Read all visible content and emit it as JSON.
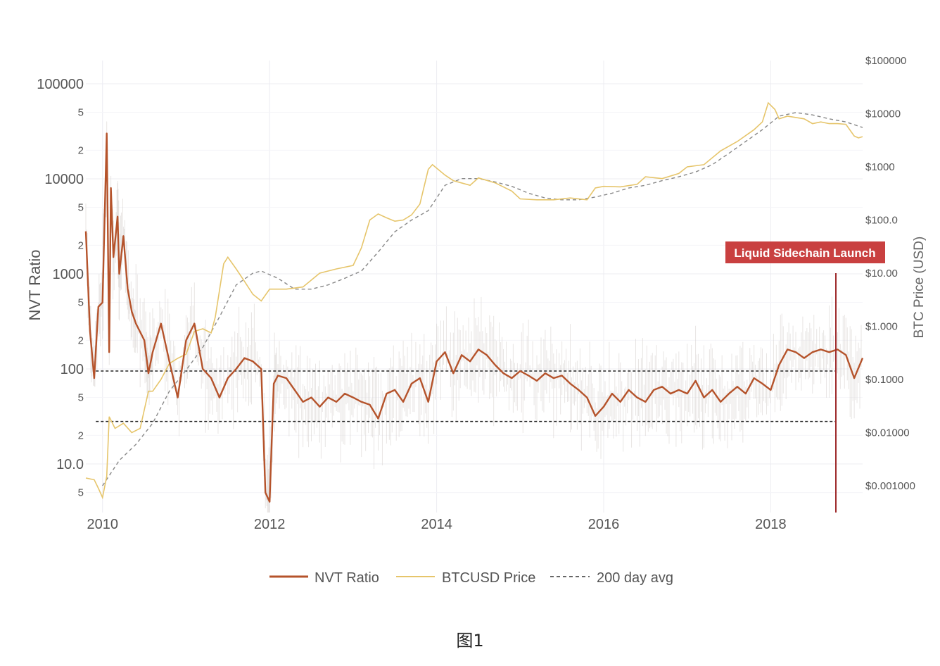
{
  "caption": "图1",
  "chart_data": {
    "type": "line",
    "xlabel": "",
    "ylabel": "NVT Ratio",
    "y2label": "BTC Price (USD)",
    "y_scale": "log",
    "y2_scale": "log",
    "xlim": [
      2009.8,
      2019.1
    ],
    "ylim": [
      4,
      200000
    ],
    "y2lim": [
      0.0004,
      200000
    ],
    "x_ticks": [
      "2010",
      "2012",
      "2014",
      "2016",
      "2018"
    ],
    "y_ticks_major": [
      "100000",
      "10000",
      "1000",
      "100",
      "10.0"
    ],
    "y_ticks_minor": [
      "5",
      "2",
      "5",
      "2",
      "5",
      "2",
      "5",
      "2",
      "5"
    ],
    "y2_ticks": [
      "$100000",
      "$10000",
      "$1000",
      "$100.0",
      "$10.00",
      "$1.000",
      "$0.1000",
      "$0.01000",
      "$0.001000"
    ],
    "grid": true,
    "legend_position": "bottom-center",
    "legend": [
      "NVT Ratio",
      "BTCUSD Price",
      "200 day avg"
    ],
    "colors": {
      "nvt": "#b5532b",
      "nvt_raw": "#cccccc",
      "price": "#e6c56b",
      "avg": "#888888",
      "annotation": "#c0392b"
    },
    "reference_lines": [
      {
        "y": 95,
        "style": "dashed"
      },
      {
        "y": 28,
        "style": "dashed"
      }
    ],
    "annotation": {
      "text": "Liquid Sidechain Launch",
      "x": 2018.78
    },
    "series": [
      {
        "name": "NVT Ratio",
        "axis": "left",
        "points": [
          [
            2009.8,
            2800
          ],
          [
            2009.85,
            250
          ],
          [
            2009.9,
            80
          ],
          [
            2009.95,
            450
          ],
          [
            2010.0,
            500
          ],
          [
            2010.05,
            30000
          ],
          [
            2010.08,
            150
          ],
          [
            2010.1,
            8000
          ],
          [
            2010.13,
            1500
          ],
          [
            2010.18,
            4000
          ],
          [
            2010.2,
            1000
          ],
          [
            2010.25,
            2500
          ],
          [
            2010.3,
            700
          ],
          [
            2010.35,
            400
          ],
          [
            2010.4,
            300
          ],
          [
            2010.5,
            200
          ],
          [
            2010.55,
            90
          ],
          [
            2010.6,
            150
          ],
          [
            2010.7,
            300
          ],
          [
            2010.8,
            120
          ],
          [
            2010.9,
            50
          ],
          [
            2011.0,
            200
          ],
          [
            2011.1,
            300
          ],
          [
            2011.2,
            100
          ],
          [
            2011.3,
            80
          ],
          [
            2011.4,
            50
          ],
          [
            2011.5,
            80
          ],
          [
            2011.6,
            100
          ],
          [
            2011.7,
            130
          ],
          [
            2011.8,
            120
          ],
          [
            2011.9,
            100
          ],
          [
            2011.95,
            5
          ],
          [
            2012.0,
            4
          ],
          [
            2012.05,
            70
          ],
          [
            2012.1,
            85
          ],
          [
            2012.2,
            80
          ],
          [
            2012.3,
            60
          ],
          [
            2012.4,
            45
          ],
          [
            2012.5,
            50
          ],
          [
            2012.6,
            40
          ],
          [
            2012.7,
            50
          ],
          [
            2012.8,
            45
          ],
          [
            2012.9,
            55
          ],
          [
            2013.0,
            50
          ],
          [
            2013.1,
            45
          ],
          [
            2013.2,
            42
          ],
          [
            2013.3,
            30
          ],
          [
            2013.4,
            55
          ],
          [
            2013.5,
            60
          ],
          [
            2013.6,
            45
          ],
          [
            2013.7,
            70
          ],
          [
            2013.8,
            80
          ],
          [
            2013.9,
            45
          ],
          [
            2014.0,
            120
          ],
          [
            2014.1,
            150
          ],
          [
            2014.2,
            90
          ],
          [
            2014.3,
            140
          ],
          [
            2014.4,
            120
          ],
          [
            2014.5,
            160
          ],
          [
            2014.6,
            140
          ],
          [
            2014.7,
            110
          ],
          [
            2014.8,
            90
          ],
          [
            2014.9,
            80
          ],
          [
            2015.0,
            95
          ],
          [
            2015.1,
            85
          ],
          [
            2015.2,
            75
          ],
          [
            2015.3,
            90
          ],
          [
            2015.4,
            80
          ],
          [
            2015.5,
            85
          ],
          [
            2015.6,
            70
          ],
          [
            2015.7,
            60
          ],
          [
            2015.8,
            50
          ],
          [
            2015.9,
            32
          ],
          [
            2016.0,
            40
          ],
          [
            2016.1,
            55
          ],
          [
            2016.2,
            45
          ],
          [
            2016.3,
            60
          ],
          [
            2016.4,
            50
          ],
          [
            2016.5,
            45
          ],
          [
            2016.6,
            60
          ],
          [
            2016.7,
            65
          ],
          [
            2016.8,
            55
          ],
          [
            2016.9,
            60
          ],
          [
            2017.0,
            55
          ],
          [
            2017.1,
            75
          ],
          [
            2017.2,
            50
          ],
          [
            2017.3,
            60
          ],
          [
            2017.4,
            45
          ],
          [
            2017.5,
            55
          ],
          [
            2017.6,
            65
          ],
          [
            2017.7,
            55
          ],
          [
            2017.8,
            80
          ],
          [
            2017.9,
            70
          ],
          [
            2018.0,
            60
          ],
          [
            2018.1,
            110
          ],
          [
            2018.2,
            160
          ],
          [
            2018.3,
            150
          ],
          [
            2018.4,
            130
          ],
          [
            2018.5,
            150
          ],
          [
            2018.6,
            160
          ],
          [
            2018.7,
            150
          ],
          [
            2018.8,
            160
          ],
          [
            2018.9,
            140
          ],
          [
            2019.0,
            80
          ],
          [
            2019.1,
            130
          ]
        ]
      },
      {
        "name": "BTCUSD Price",
        "axis": "right",
        "points": [
          [
            2009.8,
            0.0014
          ],
          [
            2009.9,
            0.0013
          ],
          [
            2009.95,
            0.0009
          ],
          [
            2010.0,
            0.0006
          ],
          [
            2010.05,
            0.0015
          ],
          [
            2010.08,
            0.02
          ],
          [
            2010.15,
            0.012
          ],
          [
            2010.25,
            0.015
          ],
          [
            2010.35,
            0.01
          ],
          [
            2010.45,
            0.012
          ],
          [
            2010.55,
            0.06
          ],
          [
            2010.6,
            0.06
          ],
          [
            2010.7,
            0.1
          ],
          [
            2010.8,
            0.2
          ],
          [
            2010.9,
            0.25
          ],
          [
            2011.0,
            0.3
          ],
          [
            2011.1,
            0.8
          ],
          [
            2011.2,
            0.9
          ],
          [
            2011.3,
            0.75
          ],
          [
            2011.35,
            1.5
          ],
          [
            2011.45,
            15
          ],
          [
            2011.5,
            20
          ],
          [
            2011.6,
            12
          ],
          [
            2011.7,
            7
          ],
          [
            2011.8,
            4
          ],
          [
            2011.9,
            3
          ],
          [
            2012.0,
            5
          ],
          [
            2012.2,
            5
          ],
          [
            2012.4,
            5.5
          ],
          [
            2012.6,
            10
          ],
          [
            2012.8,
            12
          ],
          [
            2013.0,
            14
          ],
          [
            2013.1,
            30
          ],
          [
            2013.2,
            100
          ],
          [
            2013.3,
            130
          ],
          [
            2013.4,
            110
          ],
          [
            2013.5,
            95
          ],
          [
            2013.6,
            100
          ],
          [
            2013.7,
            125
          ],
          [
            2013.8,
            200
          ],
          [
            2013.9,
            900
          ],
          [
            2013.95,
            1100
          ],
          [
            2014.1,
            700
          ],
          [
            2014.2,
            550
          ],
          [
            2014.4,
            450
          ],
          [
            2014.5,
            620
          ],
          [
            2014.7,
            500
          ],
          [
            2014.9,
            350
          ],
          [
            2015.0,
            250
          ],
          [
            2015.2,
            240
          ],
          [
            2015.4,
            240
          ],
          [
            2015.6,
            260
          ],
          [
            2015.8,
            240
          ],
          [
            2015.9,
            400
          ],
          [
            2016.0,
            430
          ],
          [
            2016.2,
            420
          ],
          [
            2016.4,
            470
          ],
          [
            2016.5,
            650
          ],
          [
            2016.7,
            600
          ],
          [
            2016.9,
            750
          ],
          [
            2017.0,
            1000
          ],
          [
            2017.2,
            1100
          ],
          [
            2017.4,
            2000
          ],
          [
            2017.6,
            3000
          ],
          [
            2017.8,
            5000
          ],
          [
            2017.9,
            7000
          ],
          [
            2017.97,
            16000
          ],
          [
            2018.05,
            12000
          ],
          [
            2018.1,
            8000
          ],
          [
            2018.2,
            9000
          ],
          [
            2018.4,
            8000
          ],
          [
            2018.5,
            6500
          ],
          [
            2018.6,
            7000
          ],
          [
            2018.7,
            6500
          ],
          [
            2018.8,
            6500
          ],
          [
            2018.9,
            6300
          ],
          [
            2019.0,
            3800
          ],
          [
            2019.05,
            3500
          ],
          [
            2019.1,
            3700
          ]
        ]
      },
      {
        "name": "200 day avg",
        "axis": "right",
        "points": [
          [
            2010.0,
            0.001
          ],
          [
            2010.2,
            0.003
          ],
          [
            2010.4,
            0.006
          ],
          [
            2010.6,
            0.015
          ],
          [
            2010.8,
            0.06
          ],
          [
            2011.0,
            0.15
          ],
          [
            2011.2,
            0.4
          ],
          [
            2011.4,
            1.5
          ],
          [
            2011.6,
            6
          ],
          [
            2011.8,
            10
          ],
          [
            2011.9,
            11
          ],
          [
            2012.1,
            8
          ],
          [
            2012.3,
            5
          ],
          [
            2012.5,
            5
          ],
          [
            2012.7,
            6
          ],
          [
            2012.9,
            8
          ],
          [
            2013.1,
            11
          ],
          [
            2013.3,
            25
          ],
          [
            2013.5,
            60
          ],
          [
            2013.7,
            100
          ],
          [
            2013.9,
            150
          ],
          [
            2014.1,
            450
          ],
          [
            2014.3,
            600
          ],
          [
            2014.5,
            600
          ],
          [
            2014.7,
            520
          ],
          [
            2014.9,
            430
          ],
          [
            2015.1,
            320
          ],
          [
            2015.3,
            260
          ],
          [
            2015.5,
            240
          ],
          [
            2015.7,
            240
          ],
          [
            2015.9,
            270
          ],
          [
            2016.1,
            320
          ],
          [
            2016.3,
            400
          ],
          [
            2016.5,
            450
          ],
          [
            2016.7,
            550
          ],
          [
            2016.9,
            650
          ],
          [
            2017.1,
            800
          ],
          [
            2017.3,
            1100
          ],
          [
            2017.5,
            1800
          ],
          [
            2017.7,
            3000
          ],
          [
            2017.9,
            5000
          ],
          [
            2018.1,
            9000
          ],
          [
            2018.3,
            10500
          ],
          [
            2018.5,
            9500
          ],
          [
            2018.7,
            8000
          ],
          [
            2018.9,
            7000
          ],
          [
            2019.1,
            5500
          ]
        ]
      }
    ]
  }
}
